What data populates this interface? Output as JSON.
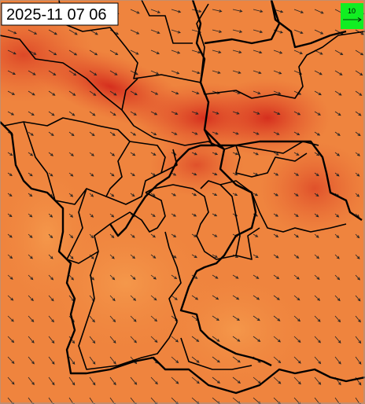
{
  "timestamp": "2025-11 07 06",
  "legend": {
    "label": "10"
  }
}
